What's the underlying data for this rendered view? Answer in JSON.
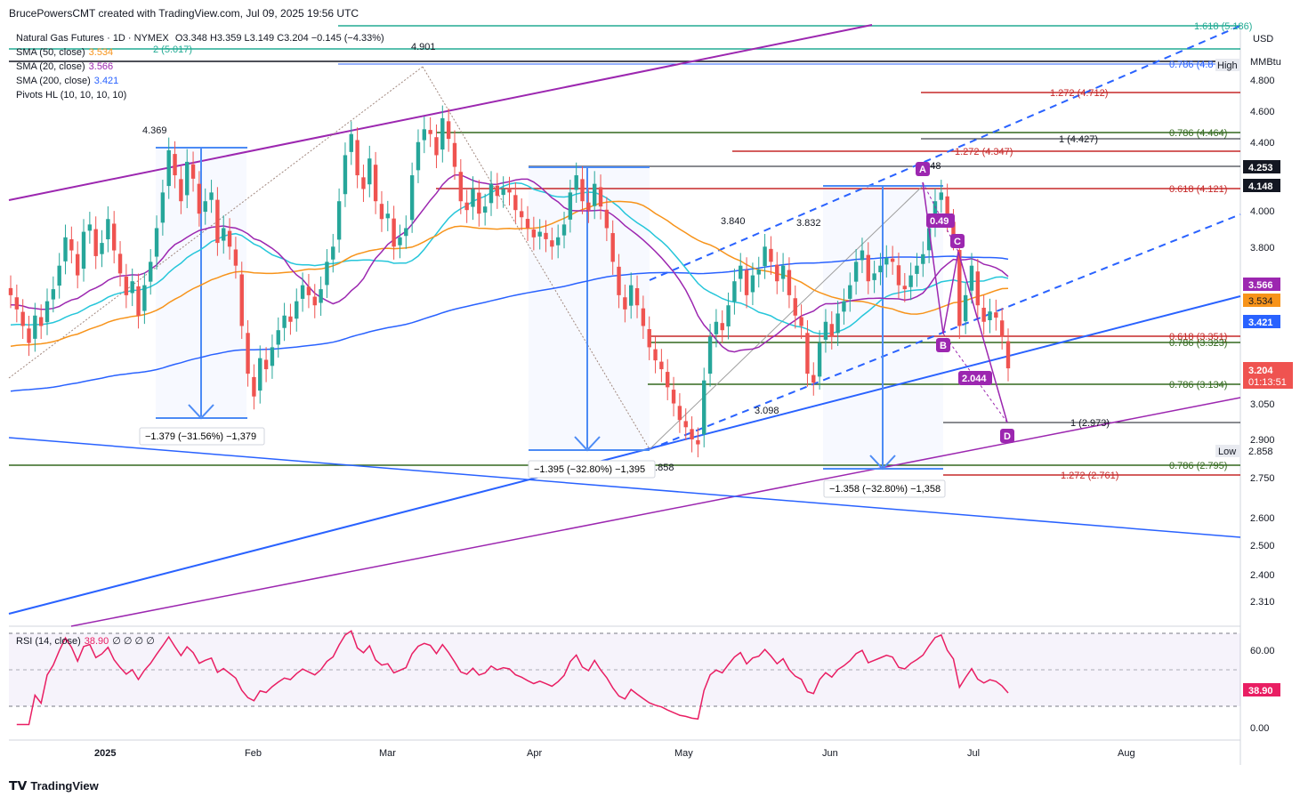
{
  "attribution": "BrucePowersCMT created with TradingView.com, Jul 09, 2025 19:56 UTC",
  "footer": "TradingView",
  "legend": {
    "title": "Natural Gas Futures · 1D · NYMEX",
    "ohlc": "O3.348  H3.359  L3.149  C3.204  −0.145 (−4.33%)",
    "sma50": {
      "label": "SMA (50, close)",
      "value": "3.534",
      "color": "#f7931a"
    },
    "sma20": {
      "label": "SMA (20, close)",
      "value": "3.566",
      "color": "#9c27b0"
    },
    "sma200": {
      "label": "SMA (200, close)",
      "value": "3.421",
      "color": "#2962ff"
    },
    "pivots": "Pivots HL (10, 10, 10, 10)"
  },
  "axis_header": {
    "currency": "USD",
    "unit": "MMBtu"
  },
  "rsi_legend": {
    "label": "RSI (14, close)",
    "value": "38.90",
    "extras": "∅ ∅ ∅ ∅"
  },
  "chart_data": [
    {
      "type": "candlestick",
      "title": "Natural Gas Futures · 1D · NYMEX",
      "x_ticks": [
        "2025",
        "Feb",
        "Mar",
        "Apr",
        "May",
        "Jun",
        "Jul",
        "Aug"
      ],
      "y_ticks": [
        "4.800",
        "4.600",
        "4.400",
        "4.000",
        "3.800",
        "3.050",
        "2.900",
        "2.750",
        "2.600",
        "2.500",
        "2.400",
        "2.310"
      ],
      "y_scale": "log",
      "last_price": {
        "value": "3.204",
        "countdown": "01:13:51",
        "color": "#ef5350"
      },
      "price_tags": [
        {
          "value": "4.253",
          "color": "#131722"
        },
        {
          "value": "4.148",
          "color": "#131722"
        },
        {
          "value": "3.566",
          "color": "#9c27b0"
        },
        {
          "value": "3.534",
          "color": "#f7931a"
        },
        {
          "value": "3.421",
          "color": "#2962ff"
        }
      ],
      "high_low_tags": {
        "high_label": "High",
        "low_label": "Low",
        "low_value": "2.858"
      },
      "candles_close": [
        3.55,
        3.48,
        3.4,
        3.32,
        3.45,
        3.4,
        3.52,
        3.58,
        3.7,
        3.85,
        3.78,
        3.65,
        3.88,
        3.92,
        3.75,
        3.82,
        3.95,
        3.78,
        3.66,
        3.55,
        3.62,
        3.45,
        3.6,
        3.72,
        3.9,
        4.1,
        4.35,
        4.2,
        4.05,
        4.28,
        4.18,
        3.98,
        4.05,
        4.1,
        3.82,
        3.9,
        3.8,
        3.7,
        3.4,
        3.18,
        3.08,
        3.25,
        3.2,
        3.3,
        3.38,
        3.45,
        3.42,
        3.52,
        3.6,
        3.55,
        3.5,
        3.58,
        3.72,
        3.8,
        4.05,
        4.32,
        4.45,
        4.2,
        4.12,
        4.3,
        4.05,
        3.95,
        3.98,
        3.8,
        3.85,
        3.9,
        4.2,
        4.4,
        4.48,
        4.45,
        4.32,
        4.55,
        4.42,
        4.25,
        4.05,
        4.0,
        4.12,
        3.98,
        4.02,
        4.15,
        4.08,
        4.12,
        4.1,
        4.0,
        3.96,
        3.9,
        3.85,
        3.88,
        3.84,
        3.8,
        3.85,
        3.92,
        4.1,
        4.2,
        4.05,
        4.0,
        4.15,
        4.02,
        3.9,
        3.72,
        3.55,
        3.48,
        3.6,
        3.5,
        3.4,
        3.3,
        3.24,
        3.2,
        3.12,
        3.05,
        2.98,
        2.95,
        2.9,
        2.88,
        3.15,
        3.35,
        3.42,
        3.38,
        3.5,
        3.62,
        3.7,
        3.55,
        3.65,
        3.68,
        3.8,
        3.72,
        3.62,
        3.7,
        3.55,
        3.45,
        3.4,
        3.18,
        3.14,
        3.32,
        3.42,
        3.35,
        3.46,
        3.52,
        3.6,
        3.72,
        3.78,
        3.62,
        3.66,
        3.7,
        3.74,
        3.72,
        3.6,
        3.58,
        3.65,
        3.7,
        3.76,
        3.9,
        4.05,
        4.1,
        3.95,
        3.85,
        3.4,
        3.55,
        3.7,
        3.5,
        3.42,
        3.47,
        3.44,
        3.35,
        3.204
      ],
      "rsi": {
        "ticks": [
          "60.00",
          "0.00"
        ],
        "last": "38.90"
      }
    }
  ],
  "annotations": {
    "pivot_labels": [
      "4.369",
      "4.901",
      "3.840",
      "3.832",
      "3.098",
      "2.858",
      "4.148"
    ],
    "measurements": [
      "−1.379 (−31.56%) −1,379",
      "−1.395 (−32.80%) −1,395",
      "−1.358 (−32.80%) −1,358"
    ],
    "fib_levels": [
      {
        "label": "1.618 (5.186)",
        "color": "#22ab94"
      },
      {
        "label": "2 (5.017)",
        "color": "#22ab94"
      },
      {
        "label": "0.786 (4.8",
        "color": "#2962ff"
      },
      {
        "label": "1.272 (4.712)",
        "color": "#c62828"
      },
      {
        "label": "1 (4.427)",
        "color": "#131722"
      },
      {
        "label": "0.786 (4.464)",
        "color": "#33691e"
      },
      {
        "label": "1.272 (4.347)",
        "color": "#c62828"
      },
      {
        "label": "0.618 (4.121)",
        "color": "#c62828"
      },
      {
        "label": "0.618 (3.351)",
        "color": "#c62828"
      },
      {
        "label": "0.786 (3.323)",
        "color": "#33691e"
      },
      {
        "label": "0.786 (3.134)",
        "color": "#33691e"
      },
      {
        "label": "1 (2.973)",
        "color": "#131722"
      },
      {
        "label": "0.786 (2.795)",
        "color": "#33691e"
      },
      {
        "label": "1.272 (2.761)",
        "color": "#c62828"
      }
    ],
    "abcd": [
      "A",
      "B",
      "C",
      "D"
    ],
    "abcd_ratios": [
      "0.49",
      "2.044"
    ]
  }
}
